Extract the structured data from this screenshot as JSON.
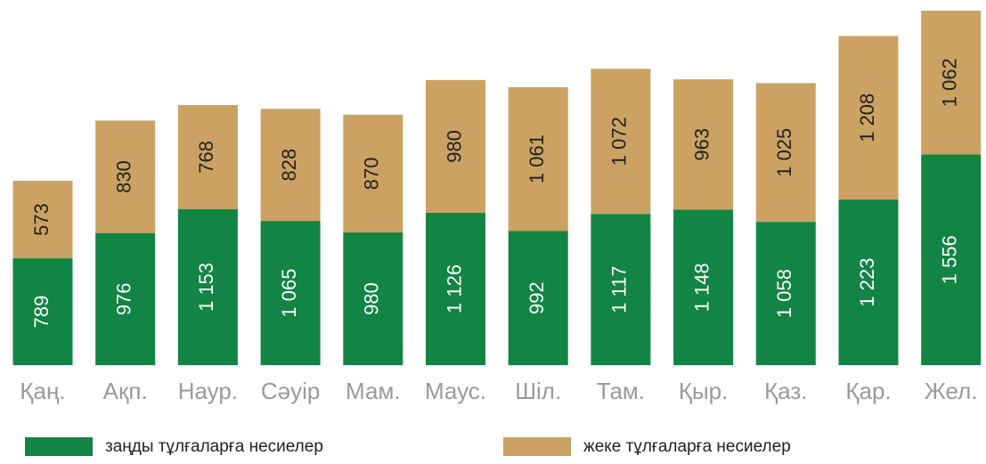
{
  "chart_data": {
    "type": "stacked-bar",
    "categories": [
      "Қаң.",
      "Ақп.",
      "Наур.",
      "Сәуір",
      "Мам.",
      "Маус.",
      "Шіл.",
      "Там.",
      "Қыр.",
      "Қаз.",
      "Қар.",
      "Жел."
    ],
    "series": [
      {
        "name": "заңды тұлғаларға несиелер",
        "color": "#128444",
        "values": [
          789,
          976,
          1153,
          1065,
          980,
          1126,
          992,
          1117,
          1148,
          1058,
          1223,
          1556
        ],
        "value_labels": [
          "789",
          "976",
          "1 153",
          "1 065",
          "980",
          "1 126",
          "992",
          "1 117",
          "1 148",
          "1 058",
          "1 223",
          "1 556"
        ]
      },
      {
        "name": "жеке тұлғаларға несиелер",
        "color": "#cba262",
        "values": [
          573,
          830,
          768,
          828,
          870,
          980,
          1061,
          1072,
          963,
          1025,
          1208,
          1062
        ],
        "value_labels": [
          "573",
          "830",
          "768",
          "828",
          "870",
          "980",
          "1 061",
          "1 072",
          "963",
          "1 025",
          "1 208",
          "1 062"
        ]
      }
    ]
  }
}
